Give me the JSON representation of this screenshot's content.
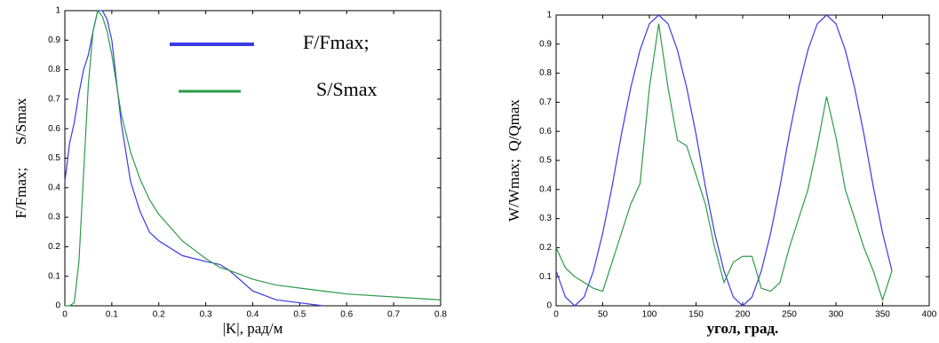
{
  "chart_data": [
    {
      "type": "line",
      "x": [
        0,
        0.01,
        0.02,
        0.03,
        0.04,
        0.05,
        0.06,
        0.07,
        0.08,
        0.09,
        0.1,
        0.12,
        0.14,
        0.16,
        0.18,
        0.2,
        0.25,
        0.3,
        0.33,
        0.35,
        0.4,
        0.45,
        0.5,
        0.55,
        0.6,
        0.7,
        0.8
      ],
      "series": [
        {
          "name": "F/Fmax;",
          "color": "#3a3ae6",
          "values": [
            0.42,
            0.55,
            0.62,
            0.72,
            0.8,
            0.85,
            0.93,
            1,
            1,
            0.97,
            0.9,
            0.62,
            0.42,
            0.32,
            0.25,
            0.22,
            0.17,
            0.15,
            0.14,
            0.12,
            0.05,
            0.02,
            0.01,
            0,
            null,
            null,
            null
          ]
        },
        {
          "name": "S/Smax",
          "color": "#2e9a4a",
          "values": [
            0,
            0,
            0.01,
            0.15,
            0.45,
            0.75,
            0.93,
            1,
            0.98,
            0.93,
            0.85,
            0.65,
            0.52,
            0.43,
            0.36,
            0.31,
            0.22,
            0.16,
            0.13,
            0.12,
            0.09,
            0.07,
            0.06,
            0.05,
            0.04,
            0.03,
            0.02
          ]
        }
      ],
      "xlim": [
        0,
        0.8
      ],
      "ylim": [
        0,
        1
      ],
      "xticks": [
        0,
        0.1,
        0.2,
        0.3,
        0.4,
        0.5,
        0.6,
        0.7,
        0.8
      ],
      "yticks": [
        0,
        0.1,
        0.2,
        0.3,
        0.4,
        0.5,
        0.6,
        0.7,
        0.8,
        0.9,
        1
      ],
      "xlabel": "|K|, рад/м",
      "ylabel": "F/Fmax;      S/Smax",
      "legend": "upper right"
    },
    {
      "type": "line",
      "x": [
        0,
        10,
        20,
        30,
        40,
        50,
        60,
        70,
        80,
        90,
        100,
        110,
        120,
        130,
        140,
        150,
        160,
        170,
        180,
        190,
        200,
        210,
        220,
        230,
        240,
        250,
        260,
        270,
        280,
        290,
        300,
        310,
        320,
        330,
        340,
        350,
        360
      ],
      "series": [
        {
          "color": "#3a3ae6",
          "values": [
            0.12,
            0.03,
            0,
            0.03,
            0.12,
            0.25,
            0.41,
            0.59,
            0.75,
            0.88,
            0.97,
            1,
            0.97,
            0.88,
            0.75,
            0.59,
            0.41,
            0.25,
            0.12,
            0.03,
            0,
            0.03,
            0.12,
            0.25,
            0.41,
            0.59,
            0.75,
            0.88,
            0.97,
            1,
            0.97,
            0.88,
            0.75,
            0.59,
            0.41,
            0.25,
            0.12
          ]
        },
        {
          "color": "#2e9a4a",
          "values": [
            0.2,
            0.13,
            0.1,
            0.08,
            0.06,
            0.05,
            0.15,
            0.25,
            0.35,
            0.42,
            0.75,
            0.97,
            0.75,
            0.57,
            0.55,
            0.45,
            0.35,
            0.2,
            0.08,
            0.15,
            0.17,
            0.17,
            0.06,
            0.05,
            0.08,
            0.2,
            0.3,
            0.4,
            0.55,
            0.72,
            0.58,
            0.4,
            0.3,
            0.2,
            0.12,
            0.02,
            0.12
          ]
        }
      ],
      "xlim": [
        0,
        400
      ],
      "ylim": [
        0,
        1
      ],
      "xticks": [
        0,
        50,
        100,
        150,
        200,
        250,
        300,
        350,
        400
      ],
      "yticks": [
        0,
        0.1,
        0.2,
        0.3,
        0.4,
        0.5,
        0.6,
        0.7,
        0.8,
        0.9,
        1
      ],
      "xlabel": "угол, град.",
      "ylabel": "W/Wmax;  Q/Qmax"
    }
  ]
}
